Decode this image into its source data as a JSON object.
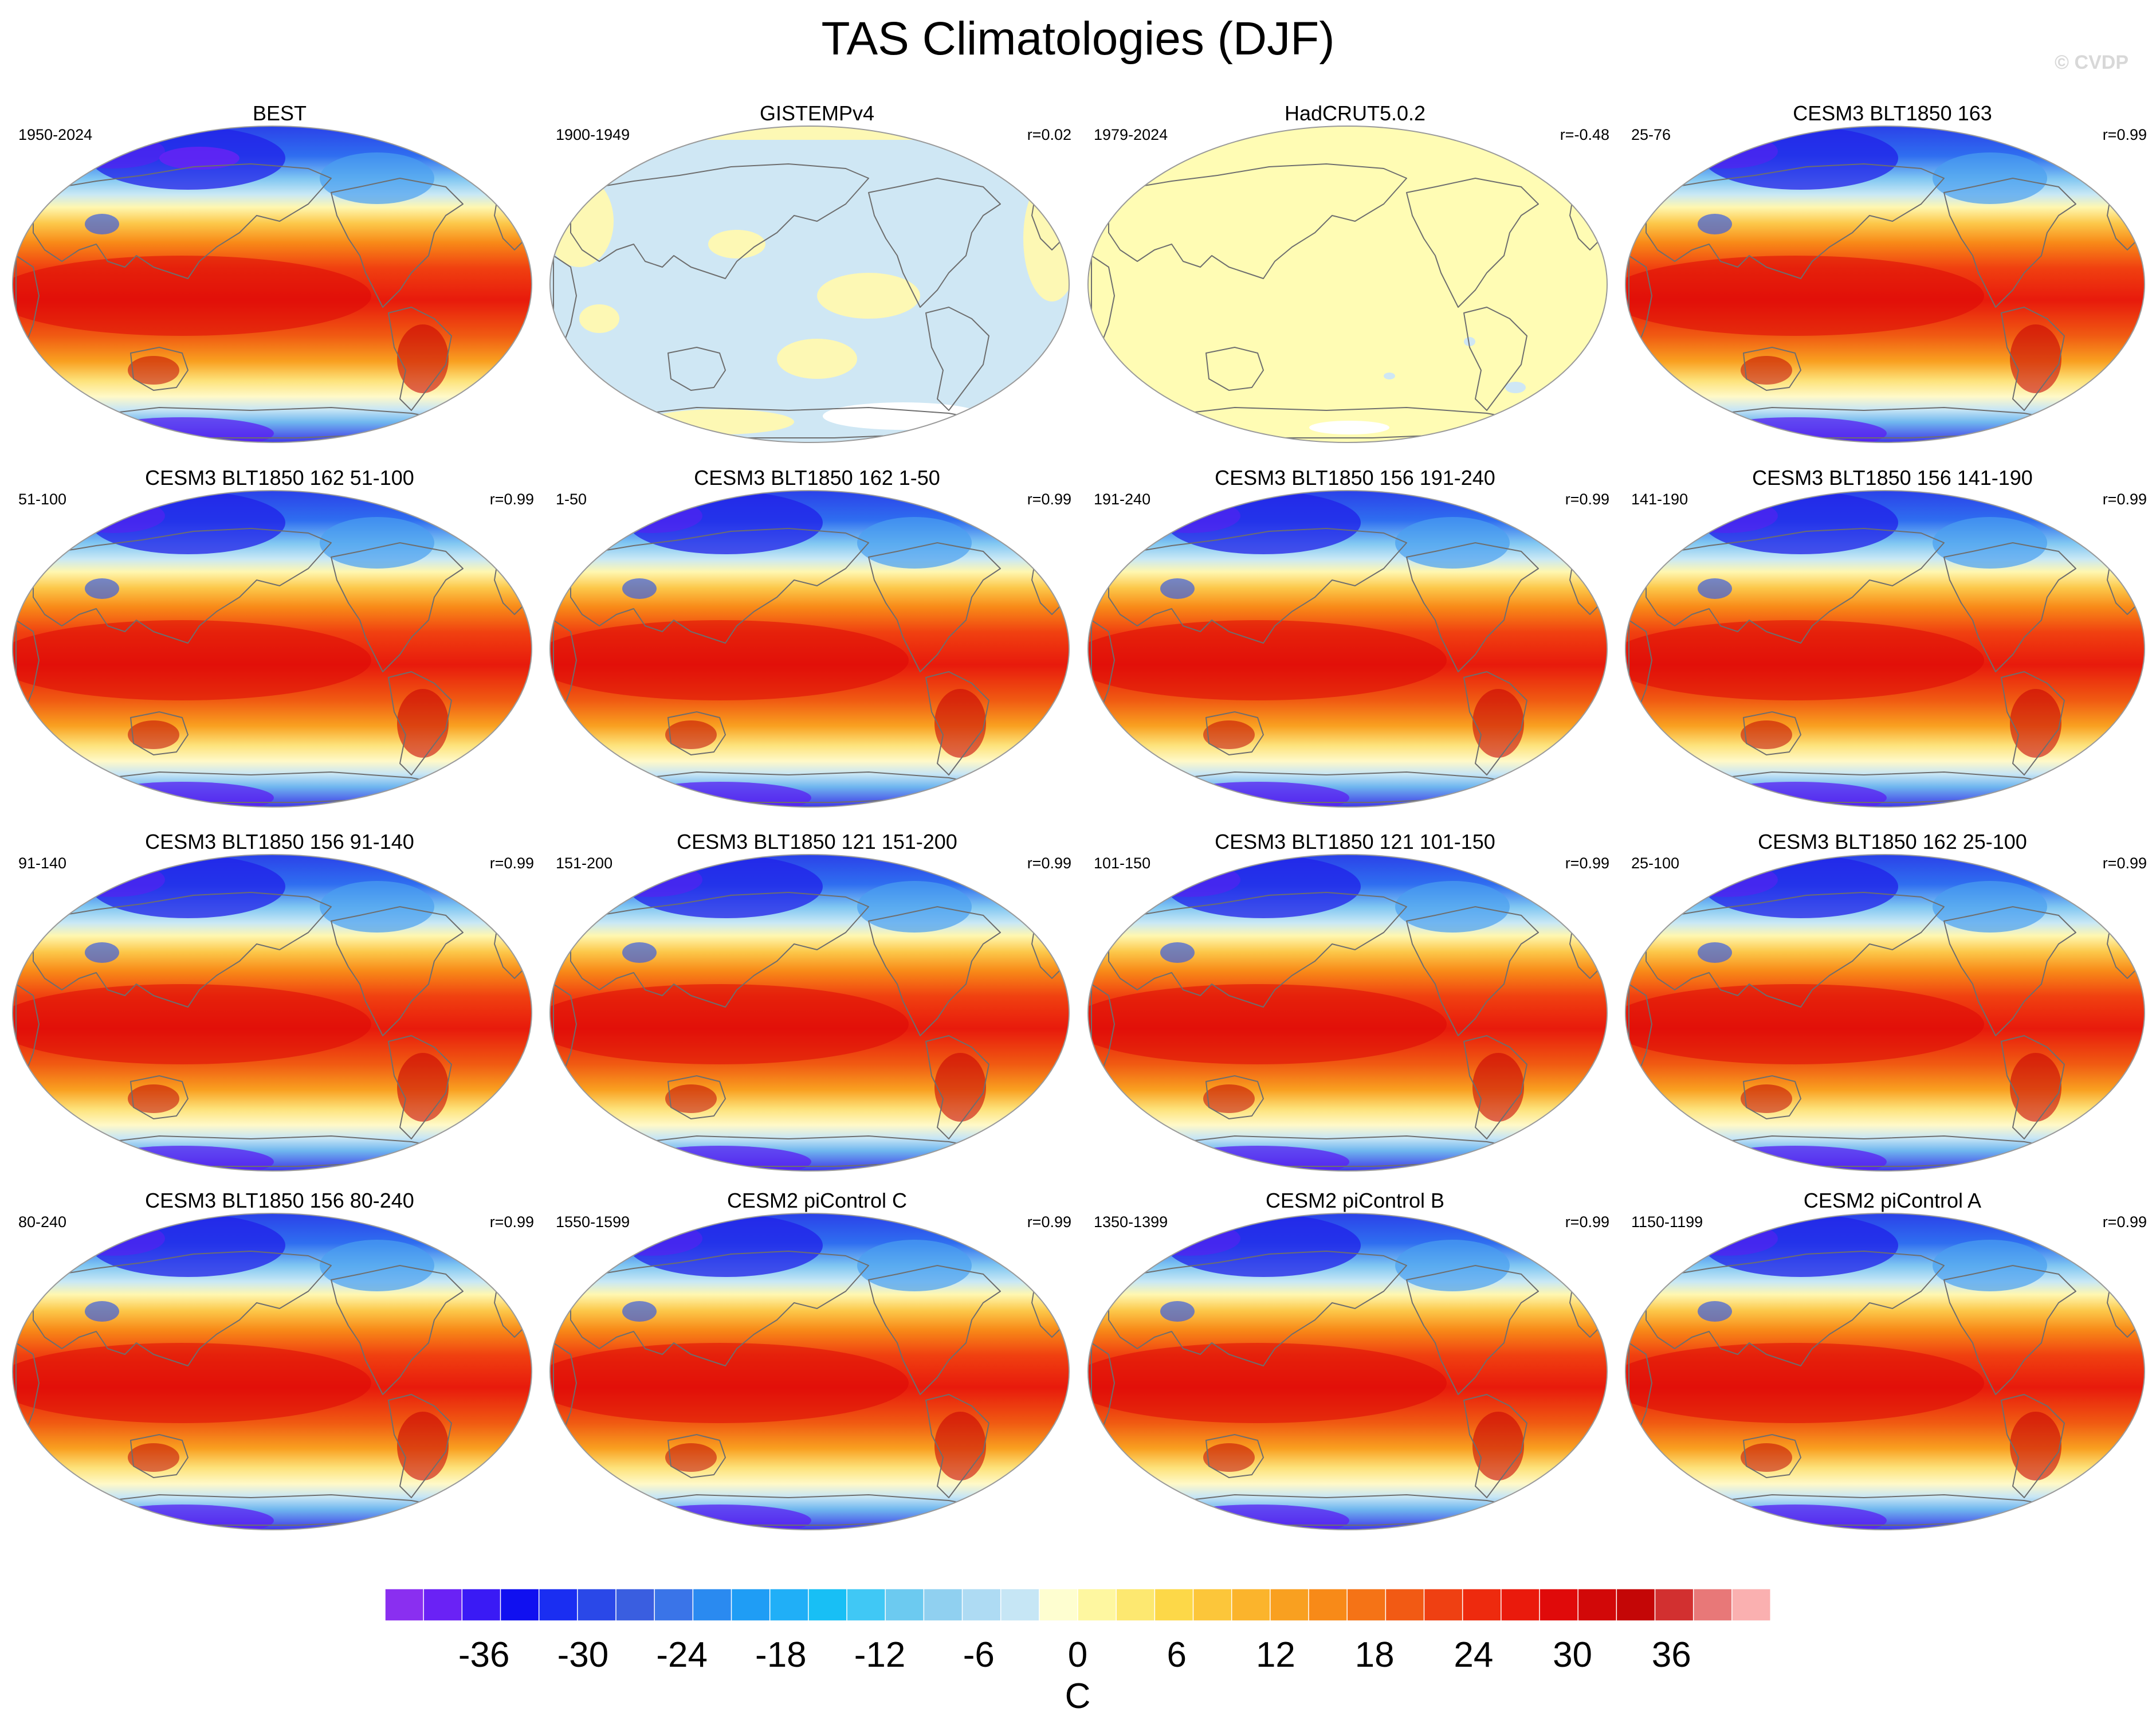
{
  "title": "TAS Climatologies (DJF)",
  "watermark": "© CVDP",
  "chart_data": {
    "type": "heatmap",
    "title": "TAS Climatologies (DJF)",
    "projection": "Robinson (Pacific-centered)",
    "units": "C",
    "colorbar": {
      "ticks": [
        -36,
        -30,
        -24,
        -18,
        -12,
        -6,
        0,
        6,
        12,
        18,
        24,
        30,
        36
      ],
      "tick_labels": [
        "-36",
        "-30",
        "-24",
        "-18",
        "-12",
        "-6",
        "0",
        "6",
        "12",
        "18",
        "24",
        "30",
        "36"
      ],
      "levels_step": 3,
      "range": [
        -42,
        42
      ],
      "label": "C",
      "colors": [
        "#8a2ff0",
        "#6a22f5",
        "#3a1af5",
        "#1010f0",
        "#1a2ef2",
        "#2a48e8",
        "#3a5ee0",
        "#3a74e8",
        "#2a8af0",
        "#1f9df5",
        "#20aff7",
        "#18bff5",
        "#40c8f5",
        "#6ccaf0",
        "#90d0f0",
        "#aedbf3",
        "#c6e6f5",
        "#fefed0",
        "#fef7a0",
        "#fde870",
        "#fdd848",
        "#fcc63a",
        "#fbb42c",
        "#f9a020",
        "#f88a18",
        "#f57316",
        "#f25a14",
        "#ef4012",
        "#ee2a0e",
        "#ea1a0c",
        "#e00a0a",
        "#d20808",
        "#c40606",
        "#d23030",
        "#e87878",
        "#fab0b0"
      ]
    },
    "panels": [
      {
        "title": "BEST",
        "years": "1950-2024",
        "r": "",
        "type": "obs"
      },
      {
        "title": "GISTEMPv4",
        "years": "1900-1949",
        "r": "r=0.02",
        "type": "sparse"
      },
      {
        "title": "HadCRUT5.0.2",
        "years": "1979-2024",
        "r": "r=-0.48",
        "type": "flat"
      },
      {
        "title": "CESM3 BLT1850 163",
        "years": "25-76",
        "r": "r=0.99",
        "type": "model"
      },
      {
        "title": "CESM3 BLT1850 162 51-100",
        "years": "51-100",
        "r": "r=0.99",
        "type": "model"
      },
      {
        "title": "CESM3 BLT1850 162 1-50",
        "years": "1-50",
        "r": "r=0.99",
        "type": "model"
      },
      {
        "title": "CESM3 BLT1850 156 191-240",
        "years": "191-240",
        "r": "r=0.99",
        "type": "model"
      },
      {
        "title": "CESM3 BLT1850 156 141-190",
        "years": "141-190",
        "r": "r=0.99",
        "type": "model"
      },
      {
        "title": "CESM3 BLT1850 156 91-140",
        "years": "91-140",
        "r": "r=0.99",
        "type": "model"
      },
      {
        "title": "CESM3 BLT1850 121 151-200",
        "years": "151-200",
        "r": "r=0.99",
        "type": "model"
      },
      {
        "title": "CESM3 BLT1850 121 101-150",
        "years": "101-150",
        "r": "r=0.99",
        "type": "model"
      },
      {
        "title": "CESM3 BLT1850 162 25-100",
        "years": "25-100",
        "r": "r=0.99",
        "type": "model"
      },
      {
        "title": "CESM3 BLT1850 156 80-240",
        "years": "80-240",
        "r": "r=0.99",
        "type": "model"
      },
      {
        "title": "CESM2 piControl C",
        "years": "1550-1599",
        "r": "r=0.99",
        "type": "model"
      },
      {
        "title": "CESM2 piControl B",
        "years": "1350-1399",
        "r": "r=0.99",
        "type": "model"
      },
      {
        "title": "CESM2 piControl A",
        "years": "1150-1199",
        "r": "r=0.99",
        "type": "model"
      }
    ]
  }
}
